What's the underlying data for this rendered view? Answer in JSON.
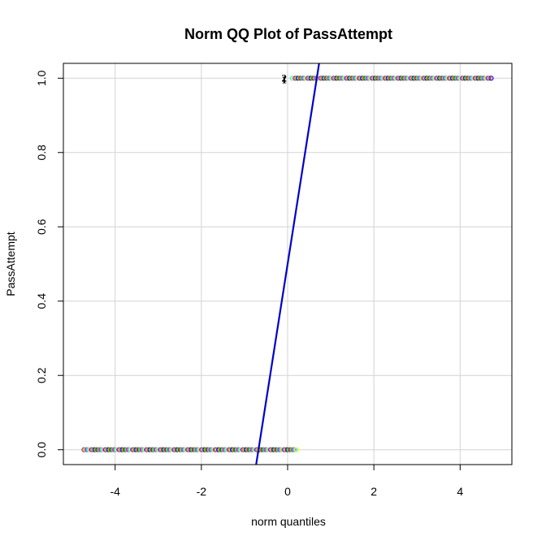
{
  "chart_data": {
    "type": "scatter",
    "title": "Norm QQ Plot of PassAttempt",
    "xlabel": "norm quantiles",
    "ylabel": "PassAttempt",
    "xlim": [
      -5.2,
      5.2
    ],
    "ylim": [
      -0.04,
      1.04
    ],
    "x_ticks": [
      -4,
      -2,
      0,
      2,
      4
    ],
    "y_ticks": [
      0.0,
      0.2,
      0.4,
      0.6,
      0.8,
      1.0
    ],
    "x_tick_labels": [
      "-4",
      "-2",
      "0",
      "2",
      "4"
    ],
    "y_tick_labels": [
      "0.0",
      "0.2",
      "0.4",
      "0.6",
      "0.8",
      "1.0"
    ],
    "grid": true,
    "series": [
      {
        "y": 0,
        "x_range": [
          -4.72,
          0.21
        ],
        "description": "zeros"
      },
      {
        "y": 1,
        "x_range": [
          0.11,
          4.72
        ],
        "description": "ones"
      }
    ],
    "reference_line": {
      "x": [
        -0.73,
        0.73
      ],
      "y": [
        -0.04,
        1.04
      ],
      "color": "#0000cc"
    },
    "point_labels": [
      {
        "text": "2",
        "x": 0.02,
        "y": 1.0
      },
      {
        "text": "1",
        "x": 0.02,
        "y": 1.0
      }
    ],
    "point_colors": [
      "#ff0000",
      "#ffff00",
      "#00ff00",
      "#00ffff",
      "#0000ff",
      "#ff00ff",
      "#ff8000",
      "#00ff80",
      "#8000ff"
    ]
  }
}
